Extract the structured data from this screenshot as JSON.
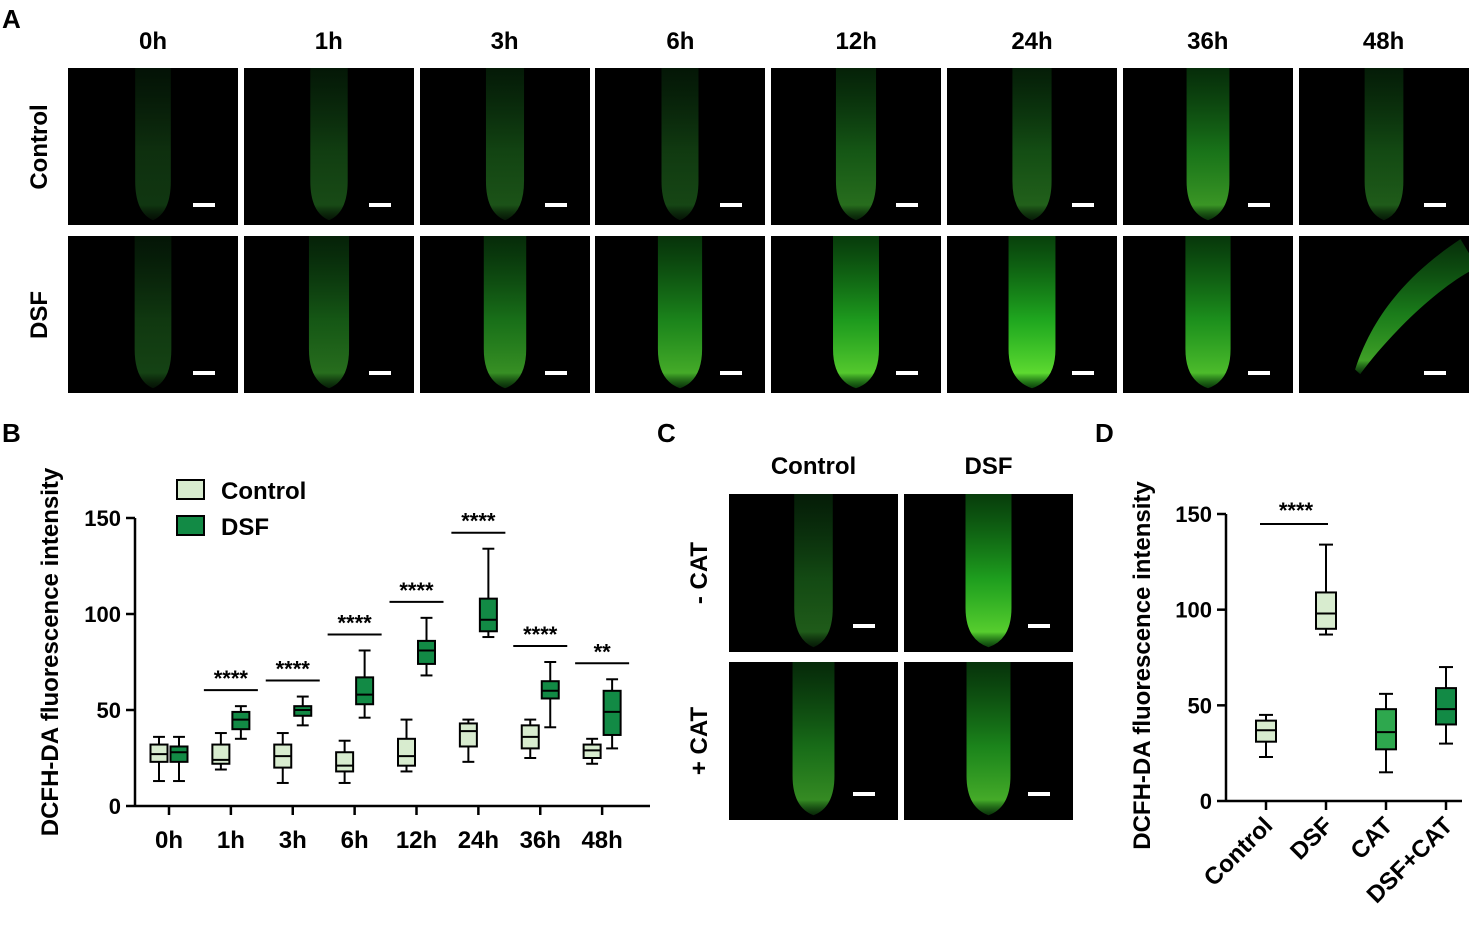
{
  "panels": {
    "a": "A",
    "b": "B",
    "c": "C",
    "d": "D"
  },
  "panel_a": {
    "timepoints": [
      "0h",
      "1h",
      "3h",
      "6h",
      "12h",
      "24h",
      "36h",
      "48h"
    ],
    "rows": [
      "Control",
      "DSF"
    ],
    "intensity": {
      "Control": [
        0.12,
        0.25,
        0.3,
        0.22,
        0.45,
        0.38,
        0.65,
        0.35
      ],
      "DSF": [
        0.2,
        0.45,
        0.62,
        0.75,
        0.88,
        0.95,
        0.82,
        0.7
      ]
    }
  },
  "panel_c": {
    "columns": [
      "Control",
      "DSF"
    ],
    "rows": [
      "- CAT",
      "+ CAT"
    ],
    "intensity": [
      [
        0.35,
        0.9
      ],
      [
        0.6,
        0.75
      ]
    ]
  },
  "chart_data": [
    {
      "type": "box",
      "panel": "B",
      "ylabel": "DCFH-DA fluorescence intensity",
      "ylim": [
        0,
        150
      ],
      "yticks": [
        0,
        50,
        100,
        150
      ],
      "categories": [
        "0h",
        "1h",
        "3h",
        "6h",
        "12h",
        "24h",
        "36h",
        "48h"
      ],
      "legend_position": "top-left",
      "series": [
        {
          "name": "Control",
          "color": "#d8eccf",
          "boxes": [
            [
              13,
              23,
              27,
              32,
              36
            ],
            [
              19,
              22,
              24,
              32,
              38
            ],
            [
              12,
              20,
              26,
              32,
              38
            ],
            [
              12,
              18,
              21,
              28,
              34
            ],
            [
              18,
              21,
              26,
              35,
              45
            ],
            [
              23,
              31,
              39,
              43,
              45
            ],
            [
              25,
              30,
              36,
              42,
              45
            ],
            [
              22,
              25,
              29,
              32,
              35
            ]
          ]
        },
        {
          "name": "DSF",
          "color": "#128a45",
          "boxes": [
            [
              13,
              23,
              28,
              31,
              36
            ],
            [
              35,
              40,
              45,
              49,
              52
            ],
            [
              42,
              47,
              50,
              52,
              57
            ],
            [
              46,
              53,
              58,
              67,
              81
            ],
            [
              68,
              74,
              81,
              86,
              98
            ],
            [
              88,
              91,
              97,
              108,
              134
            ],
            [
              41,
              56,
              60,
              65,
              75
            ],
            [
              30,
              37,
              49,
              60,
              66
            ]
          ]
        }
      ],
      "significance": [
        {
          "category": "1h",
          "label": "****"
        },
        {
          "category": "3h",
          "label": "****"
        },
        {
          "category": "6h",
          "label": "****"
        },
        {
          "category": "12h",
          "label": "****"
        },
        {
          "category": "24h",
          "label": "****"
        },
        {
          "category": "36h",
          "label": "****"
        },
        {
          "category": "48h",
          "label": "**"
        }
      ]
    },
    {
      "type": "box",
      "panel": "D",
      "ylabel": "DCFH-DA fluorescence intensity",
      "ylim": [
        0,
        150
      ],
      "yticks": [
        0,
        50,
        100,
        150
      ],
      "categories": [
        "Control",
        "DSF",
        "CAT",
        "DSF+CAT"
      ],
      "colors": [
        "#d8eccf",
        "#d8eccf",
        "#2ea84e",
        "#128a45"
      ],
      "boxes": [
        [
          23,
          31,
          37,
          42,
          45
        ],
        [
          87,
          90,
          98,
          109,
          134
        ],
        [
          15,
          27,
          36,
          48,
          56
        ],
        [
          30,
          40,
          48,
          59,
          70
        ]
      ],
      "significance": [
        {
          "from": "Control",
          "to": "DSF",
          "label": "****"
        }
      ]
    }
  ]
}
